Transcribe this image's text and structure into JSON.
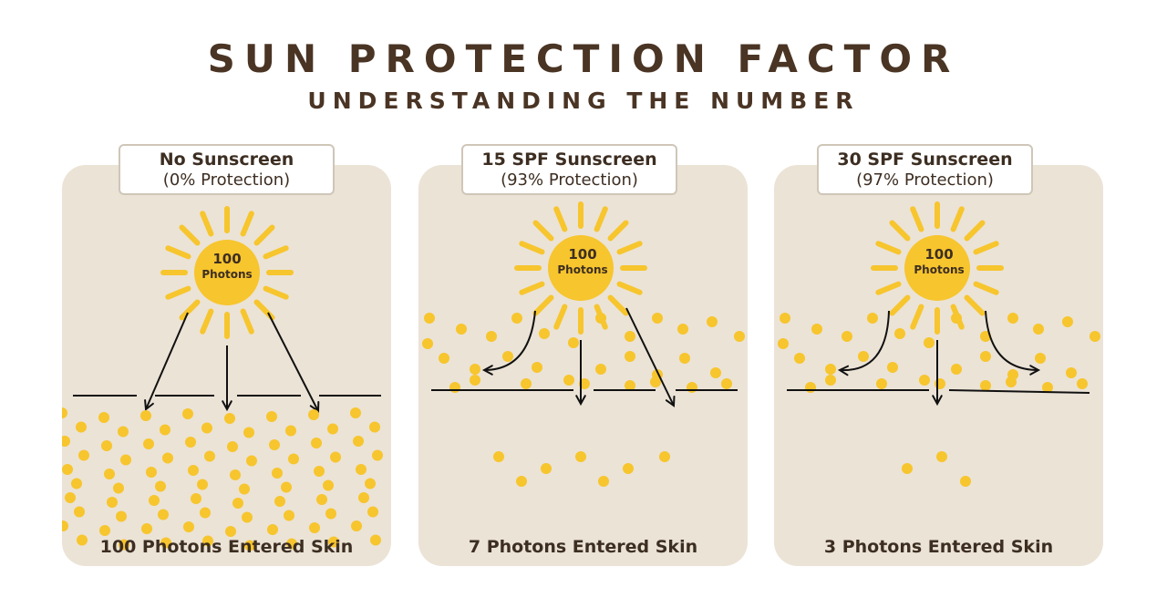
{
  "title": "SUN PROTECTION FACTOR",
  "subtitle": "UNDERSTANDING THE NUMBER",
  "colors": {
    "panel_bg": "#ebe3d6",
    "sun": "#f7c52d",
    "photon": "#f7c52d",
    "text": "#3d2e22",
    "title": "#4a3424"
  },
  "panels": [
    {
      "label": "No Sunscreen",
      "protection": "(0% Protection)",
      "sun_count": "100",
      "sun_unit": "Photons",
      "result": "100 Photons Entered Skin",
      "photons_entered": 100
    },
    {
      "label": "15 SPF Sunscreen",
      "protection": "(93% Protection)",
      "sun_count": "100",
      "sun_unit": "Photons",
      "result": "7 Photons Entered Skin",
      "photons_entered": 7
    },
    {
      "label": "30 SPF Sunscreen",
      "protection": "(97% Protection)",
      "sun_count": "100",
      "sun_unit": "Photons",
      "result": "3 Photons Entered Skin",
      "photons_entered": 3
    }
  ]
}
